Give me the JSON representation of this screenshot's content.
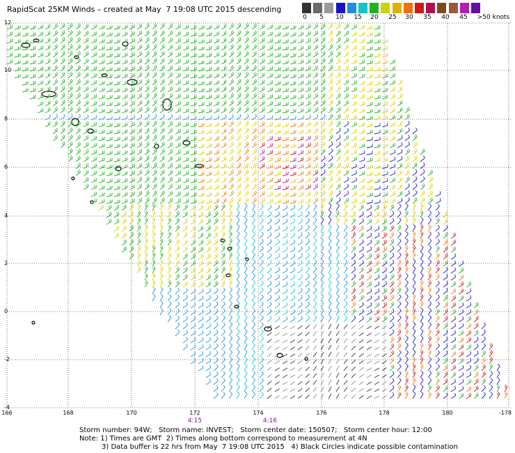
{
  "title": "RapidScat 25KM Winds – created at May  7 19:08 UTC 2015 descending",
  "scale": {
    "swatches": [
      "#303030",
      "#6a6a6a",
      "#9a9a9a",
      "#1515c8",
      "#1c8ee0",
      "#16c4c8",
      "#22b122",
      "#d0d010",
      "#e0b000",
      "#f07010",
      "#d01818",
      "#b01050",
      "#7a4a20",
      "#9a5a3a",
      "#b020b0",
      "#6a0aa0"
    ],
    "labels": [
      "0",
      "5",
      "10",
      "15",
      "20",
      "25",
      "30",
      "35",
      "40",
      "45",
      ">50 knots"
    ],
    "unit": "knots"
  },
  "axes": {
    "lat_labels": [
      "12",
      "10",
      "8",
      "6",
      "4",
      "2",
      "0",
      "-2",
      "-4"
    ],
    "lon_labels": [
      "166",
      "168",
      "170",
      "172",
      "174",
      "176",
      "178",
      "180",
      "-178"
    ]
  },
  "times": [
    "4:15",
    "4:16"
  ],
  "footer": {
    "line1": "Storm number: 94W;   Storm name: INVEST;   Storm center date: 150507;   Storm center hour: 12:00",
    "line2": "Note: 1) Times are GMT  2) Times along bottom correspond to measurement at 4N",
    "line3": "3) Data buffer is 22 hrs from May  7 19:08 UTC 2015   4) Black Circles indicate possible contamination"
  }
}
